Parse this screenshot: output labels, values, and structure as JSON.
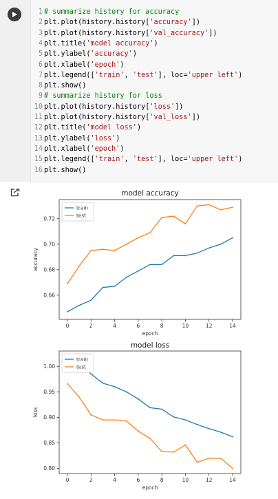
{
  "code": {
    "lines": [
      {
        "n": "1",
        "segs": [
          {
            "t": "# summarize history for accuracy",
            "c": "cm"
          }
        ]
      },
      {
        "n": "2",
        "segs": [
          {
            "t": "plt.plot(history.history[",
            "c": ""
          },
          {
            "t": "'accuracy'",
            "c": "st"
          },
          {
            "t": "])",
            "c": ""
          }
        ]
      },
      {
        "n": "3",
        "segs": [
          {
            "t": "plt.plot(history.history[",
            "c": ""
          },
          {
            "t": "'val_accuracy'",
            "c": "st"
          },
          {
            "t": "])",
            "c": ""
          }
        ]
      },
      {
        "n": "4",
        "segs": [
          {
            "t": "plt.title(",
            "c": ""
          },
          {
            "t": "'model accuracy'",
            "c": "st"
          },
          {
            "t": ")",
            "c": ""
          }
        ]
      },
      {
        "n": "5",
        "segs": [
          {
            "t": "plt.ylabel(",
            "c": ""
          },
          {
            "t": "'accuracy'",
            "c": "st"
          },
          {
            "t": ")",
            "c": ""
          }
        ]
      },
      {
        "n": "6",
        "segs": [
          {
            "t": "plt.xlabel(",
            "c": ""
          },
          {
            "t": "'epoch'",
            "c": "st"
          },
          {
            "t": ")",
            "c": ""
          }
        ]
      },
      {
        "n": "7",
        "segs": [
          {
            "t": "plt.legend([",
            "c": ""
          },
          {
            "t": "'train'",
            "c": "st"
          },
          {
            "t": ", ",
            "c": ""
          },
          {
            "t": "'test'",
            "c": "st"
          },
          {
            "t": "], loc=",
            "c": ""
          },
          {
            "t": "'upper left'",
            "c": "st"
          },
          {
            "t": ")",
            "c": ""
          }
        ]
      },
      {
        "n": "8",
        "segs": [
          {
            "t": "plt.show()",
            "c": ""
          }
        ]
      },
      {
        "n": "9",
        "segs": [
          {
            "t": "# summarize history for loss",
            "c": "cm"
          }
        ]
      },
      {
        "n": "10",
        "segs": [
          {
            "t": "plt.plot(history.history[",
            "c": ""
          },
          {
            "t": "'loss'",
            "c": "st"
          },
          {
            "t": "])",
            "c": ""
          }
        ]
      },
      {
        "n": "11",
        "segs": [
          {
            "t": "plt.plot(history.history[",
            "c": ""
          },
          {
            "t": "'val_loss'",
            "c": "st"
          },
          {
            "t": "])",
            "c": ""
          }
        ]
      },
      {
        "n": "12",
        "segs": [
          {
            "t": "plt.title(",
            "c": ""
          },
          {
            "t": "'model loss'",
            "c": "st"
          },
          {
            "t": ")",
            "c": ""
          }
        ]
      },
      {
        "n": "13",
        "segs": [
          {
            "t": "plt.ylabel(",
            "c": ""
          },
          {
            "t": "'loss'",
            "c": "st"
          },
          {
            "t": ")",
            "c": ""
          }
        ]
      },
      {
        "n": "14",
        "segs": [
          {
            "t": "plt.xlabel(",
            "c": ""
          },
          {
            "t": "'epoch'",
            "c": "st"
          },
          {
            "t": ")",
            "c": ""
          }
        ]
      },
      {
        "n": "15",
        "segs": [
          {
            "t": "plt.legend([",
            "c": ""
          },
          {
            "t": "'train'",
            "c": "st"
          },
          {
            "t": ", ",
            "c": ""
          },
          {
            "t": "'test'",
            "c": "st"
          },
          {
            "t": "], loc=",
            "c": ""
          },
          {
            "t": "'upper left'",
            "c": "st"
          },
          {
            "t": ")",
            "c": ""
          }
        ]
      },
      {
        "n": "16",
        "segs": [
          {
            "t": "plt.show()",
            "c": ""
          }
        ]
      }
    ]
  },
  "icons": {
    "run": "play-icon",
    "output": "output-icon"
  },
  "colors": {
    "train": "#1f77b4",
    "test": "#ff7f0e",
    "comment": "#008000",
    "string": "#a31515"
  },
  "chart_data": [
    {
      "type": "line",
      "title": "model accuracy",
      "xlabel": "epoch",
      "ylabel": "accuracy",
      "xlim": [
        -0.7,
        14.7
      ],
      "ylim": [
        0.641,
        0.735
      ],
      "xticks": [
        0,
        2,
        4,
        6,
        8,
        10,
        12,
        14
      ],
      "yticks": [
        0.66,
        0.68,
        0.7,
        0.72
      ],
      "ytick_labels": [
        "0.66",
        "0.68",
        "0.70",
        "0.72"
      ],
      "legend": "upper left",
      "x": [
        0,
        1,
        2,
        3,
        4,
        5,
        6,
        7,
        8,
        9,
        10,
        11,
        12,
        13,
        14
      ],
      "series": [
        {
          "name": "train",
          "color": "#1f77b4",
          "values": [
            0.647,
            0.652,
            0.656,
            0.666,
            0.667,
            0.674,
            0.679,
            0.684,
            0.684,
            0.691,
            0.691,
            0.693,
            0.697,
            0.7,
            0.705
          ]
        },
        {
          "name": "test",
          "color": "#ff7f0e",
          "values": [
            0.669,
            0.683,
            0.695,
            0.696,
            0.695,
            0.7,
            0.705,
            0.709,
            0.721,
            0.722,
            0.716,
            0.73,
            0.731,
            0.727,
            0.729
          ]
        }
      ]
    },
    {
      "type": "line",
      "title": "model loss",
      "xlabel": "epoch",
      "ylabel": "loss",
      "xlim": [
        -0.7,
        14.7
      ],
      "ylim": [
        0.79,
        1.03
      ],
      "xticks": [
        0,
        2,
        4,
        6,
        8,
        10,
        12,
        14
      ],
      "yticks": [
        0.8,
        0.85,
        0.9,
        0.95,
        1.0
      ],
      "ytick_labels": [
        "0.80",
        "0.85",
        "0.90",
        "0.95",
        "1.00"
      ],
      "legend": "upper left",
      "x": [
        0,
        1,
        2,
        3,
        4,
        5,
        6,
        7,
        8,
        9,
        10,
        11,
        12,
        13,
        14
      ],
      "series": [
        {
          "name": "train",
          "color": "#1f77b4",
          "values": [
            1.015,
            1.005,
            0.985,
            0.967,
            0.96,
            0.95,
            0.936,
            0.919,
            0.916,
            0.901,
            0.895,
            0.886,
            0.878,
            0.871,
            0.862
          ]
        },
        {
          "name": "test",
          "color": "#ff7f0e",
          "values": [
            0.966,
            0.94,
            0.905,
            0.895,
            0.895,
            0.893,
            0.873,
            0.859,
            0.833,
            0.832,
            0.846,
            0.812,
            0.82,
            0.82,
            0.8
          ]
        }
      ]
    }
  ]
}
